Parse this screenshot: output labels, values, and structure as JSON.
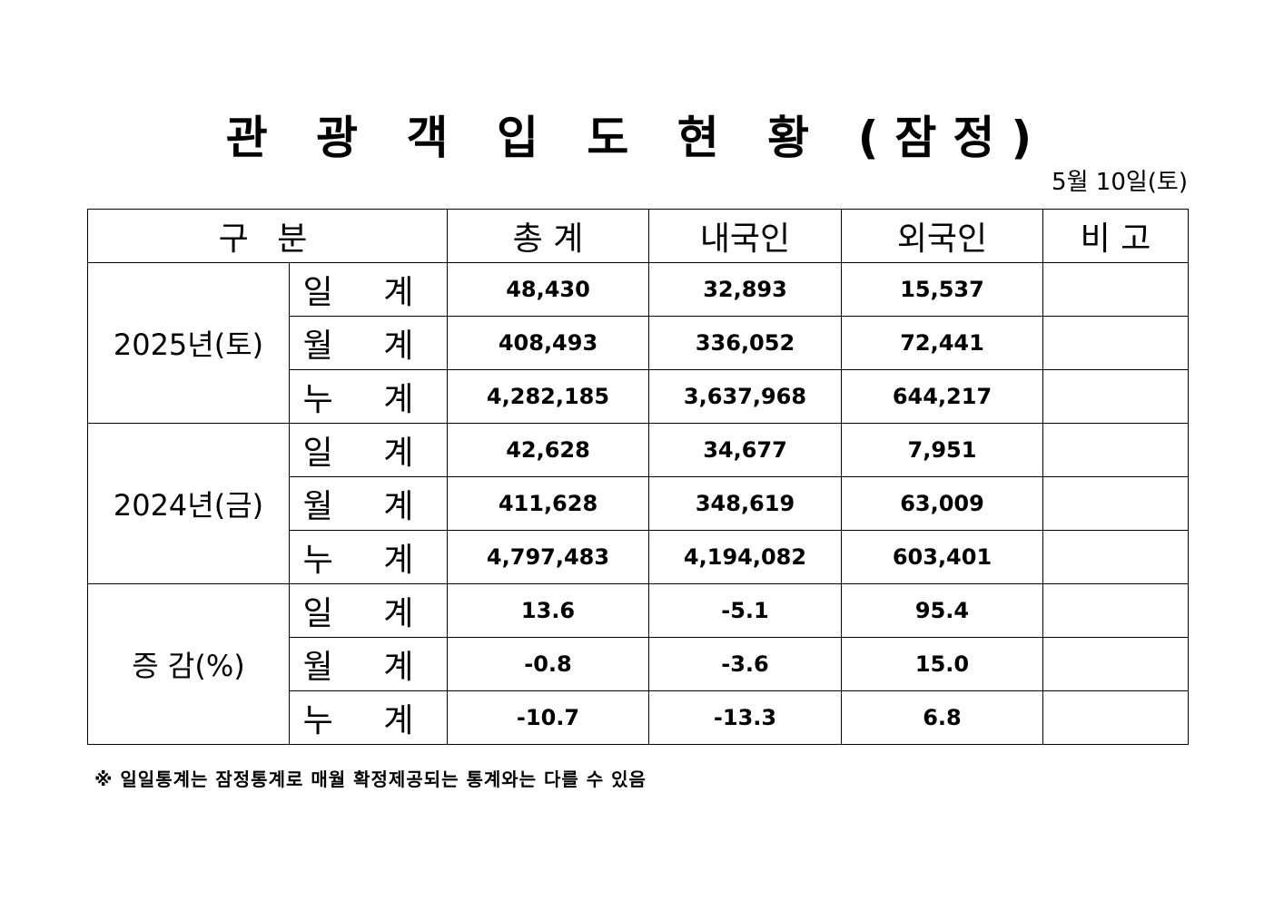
{
  "title": "관 광 객 입 도 현 황 (잠정)",
  "date": "5월  10일(토)",
  "headers": [
    "구   분",
    "총   계",
    "내국인",
    "외국인",
    "비   고"
  ],
  "groups": [
    {
      "label": "2025년(토)",
      "rows": [
        {
          "sub": "일 계",
          "total": "48,430",
          "domestic": "32,893",
          "foreign": "15,537",
          "note": ""
        },
        {
          "sub": "월 계",
          "total": "408,493",
          "domestic": "336,052",
          "foreign": "72,441",
          "note": ""
        },
        {
          "sub": "누 계",
          "total": "4,282,185",
          "domestic": "3,637,968",
          "foreign": "644,217",
          "note": ""
        }
      ]
    },
    {
      "label": "2024년(금)",
      "rows": [
        {
          "sub": "일 계",
          "total": "42,628",
          "domestic": "34,677",
          "foreign": "7,951",
          "note": ""
        },
        {
          "sub": "월 계",
          "total": "411,628",
          "domestic": "348,619",
          "foreign": "63,009",
          "note": ""
        },
        {
          "sub": "누 계",
          "total": "4,797,483",
          "domestic": "4,194,082",
          "foreign": "603,401",
          "note": ""
        }
      ]
    },
    {
      "label": "증  감(%)",
      "rows": [
        {
          "sub": "일 계",
          "total": "13.6",
          "domestic": "-5.1",
          "foreign": "95.4",
          "note": ""
        },
        {
          "sub": "월 계",
          "total": "-0.8",
          "domestic": "-3.6",
          "foreign": "15.0",
          "note": ""
        },
        {
          "sub": "누 계",
          "total": "-10.7",
          "domestic": "-13.3",
          "foreign": "6.8",
          "note": ""
        }
      ]
    }
  ],
  "footnote": "※ 일일통계는 잠정통계로 매월 확정제공되는 통계와는 다를 수 있음"
}
